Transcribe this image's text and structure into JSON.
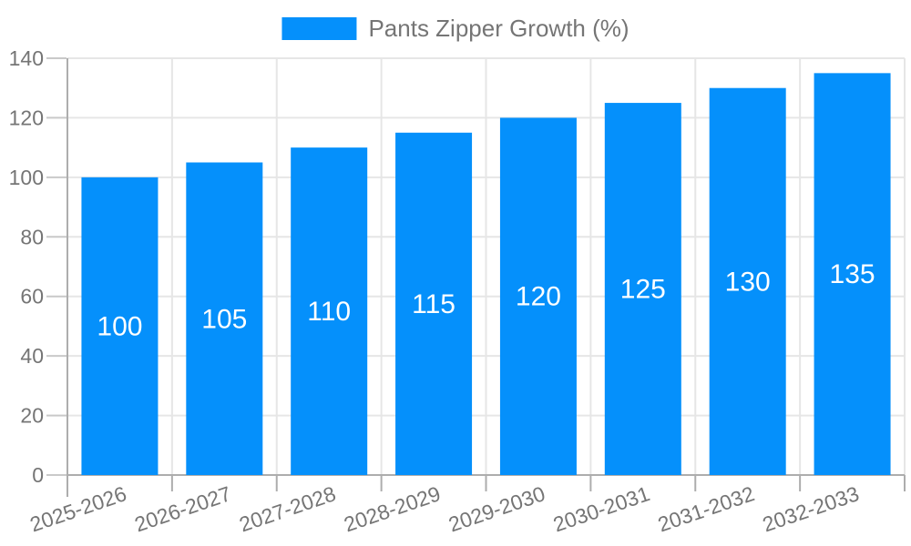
{
  "legend": {
    "label": "Pants Zipper Growth (%)"
  },
  "chart_data": {
    "type": "bar",
    "title": "",
    "xlabel": "",
    "ylabel": "",
    "categories": [
      "2025-2026",
      "2026-2027",
      "2027-2028",
      "2028-2029",
      "2029-2030",
      "2030-2031",
      "2031-2032",
      "2032-2033"
    ],
    "series": [
      {
        "name": "Pants Zipper Growth (%)",
        "values": [
          100,
          105,
          110,
          115,
          120,
          125,
          130,
          135
        ]
      }
    ],
    "bar_value_labels_shown": true,
    "ylim": [
      0,
      140
    ],
    "yticks": [
      0,
      20,
      40,
      60,
      80,
      100,
      120,
      140
    ],
    "grid": true,
    "legend_position": "top",
    "colors": {
      "bar": "#0590FB",
      "bar_label": "#ffffff",
      "axis_text": "#757575",
      "grid": "#e6e6e6",
      "axis_line": "#adadad",
      "tick": "#c9c9c9",
      "background": "#ffffff"
    }
  }
}
